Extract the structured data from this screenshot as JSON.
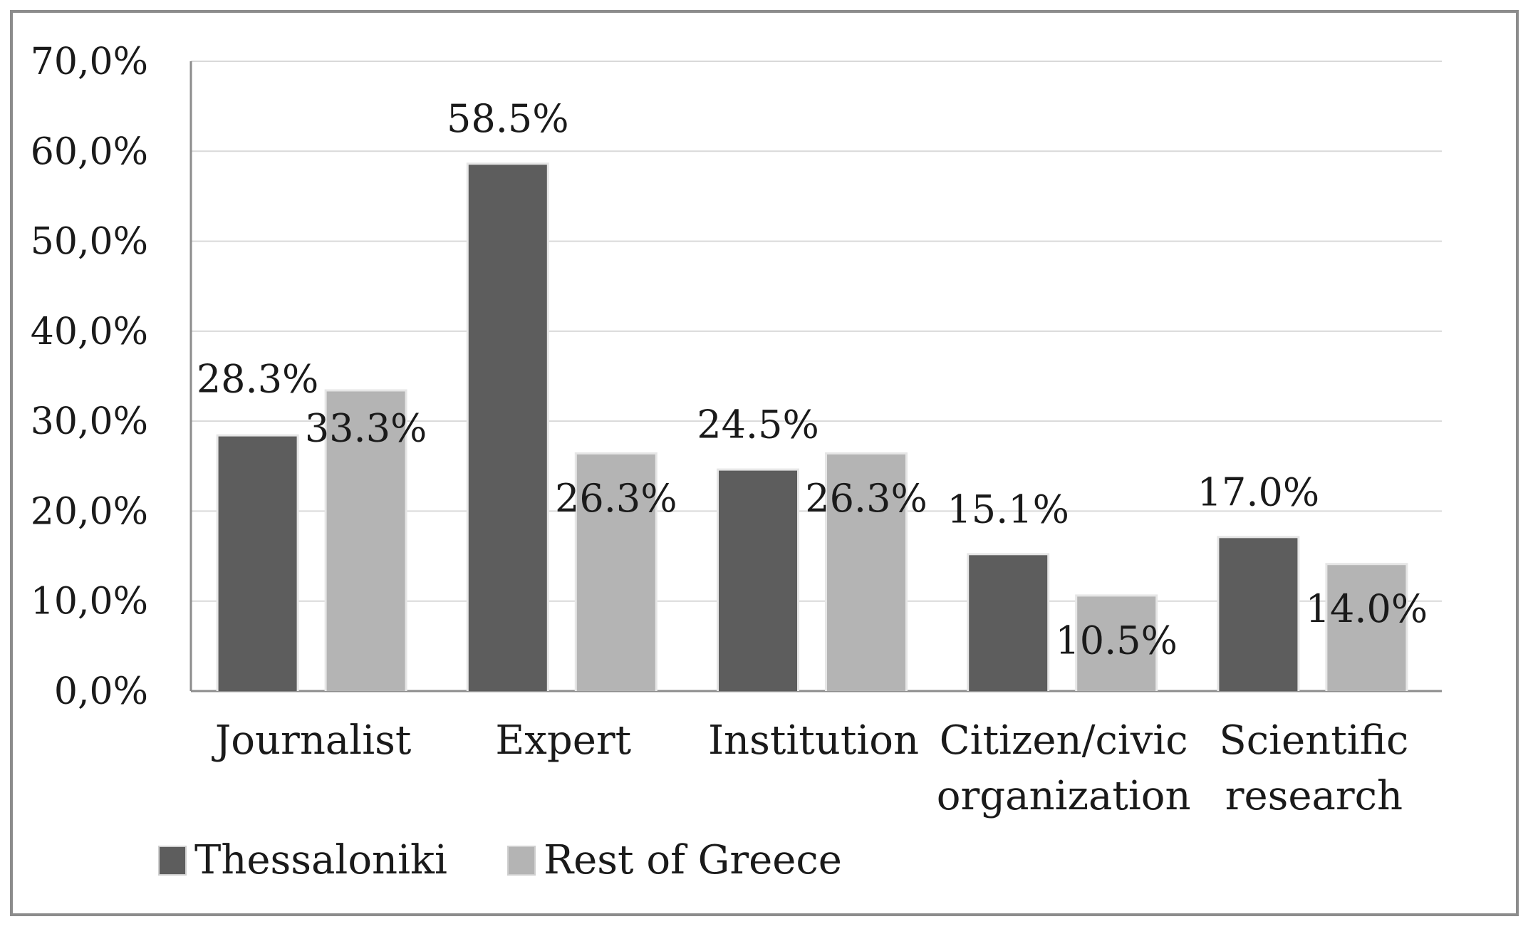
{
  "chart_data": {
    "type": "bar",
    "categories": [
      [
        "Journalist"
      ],
      [
        "Expert"
      ],
      [
        "Institution"
      ],
      [
        "Citizen/civic",
        "organization"
      ],
      [
        "Scientific",
        "research"
      ]
    ],
    "series": [
      {
        "name": "Thessaloniki",
        "color": "#5d5d5d",
        "values": [
          28.3,
          58.5,
          24.5,
          15.1,
          17.0
        ],
        "labels": [
          "28.3%",
          "58.5%",
          "24.5%",
          "15.1%",
          "17.0%"
        ]
      },
      {
        "name": "Rest of Greece",
        "color": "#b4b4b4",
        "values": [
          33.3,
          26.3,
          26.3,
          10.5,
          14.0
        ],
        "labels": [
          "33.3%",
          "26.3%",
          "26.3%",
          "10.5%",
          "14.0%"
        ]
      }
    ],
    "ylim": [
      0,
      70
    ],
    "yticks": [
      0,
      10,
      20,
      30,
      40,
      50,
      60,
      70
    ],
    "ytick_labels": [
      "0,0%",
      "10,0%",
      "20,0%",
      "30,0%",
      "40,0%",
      "50,0%",
      "60,0%",
      "70,0%"
    ],
    "grid": true,
    "legend": "bottom-left",
    "gridline_color": "#d9d9d9",
    "axis_color": "#8c8c8c"
  }
}
